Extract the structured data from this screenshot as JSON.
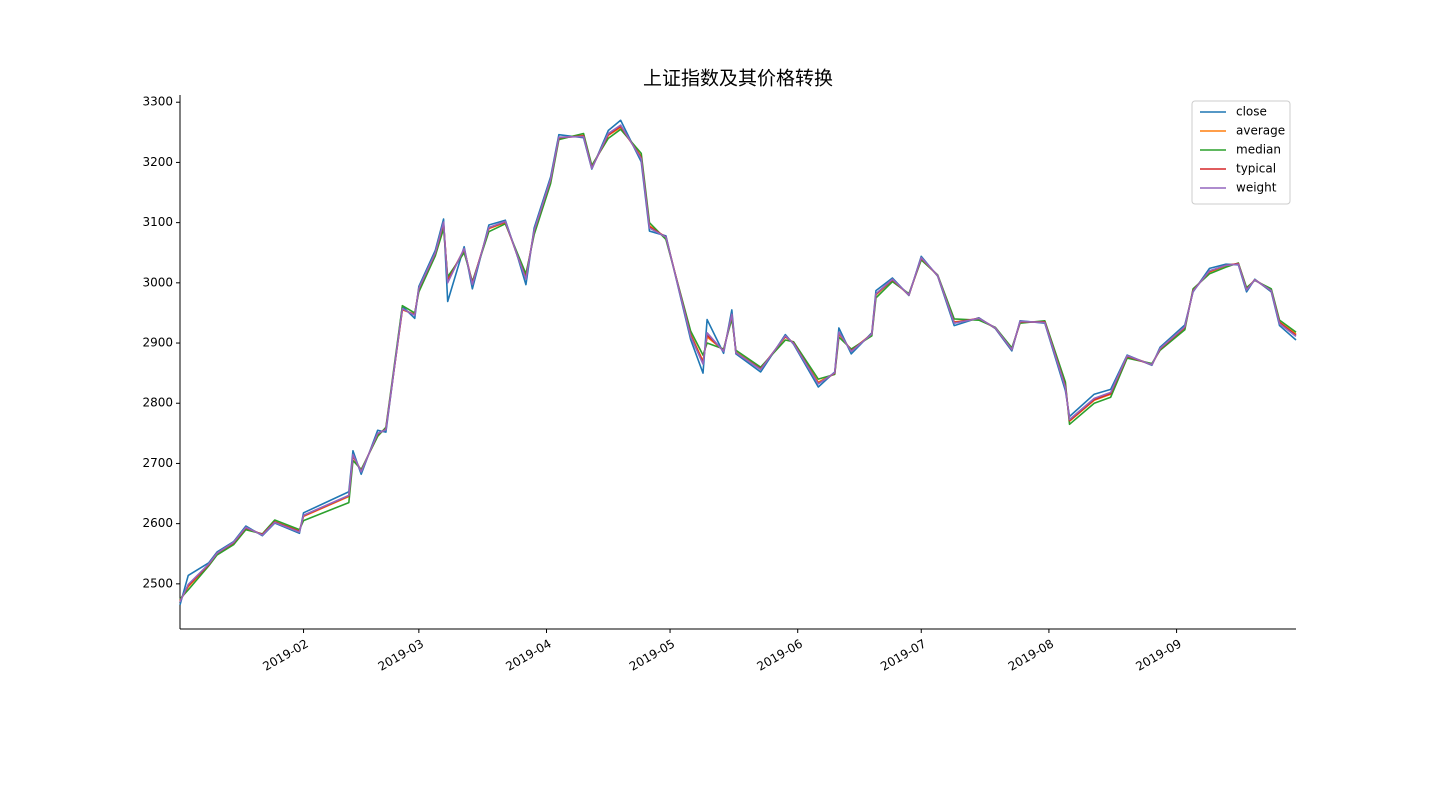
{
  "chart_data": {
    "type": "line",
    "title": "上证指数及其价格转换",
    "x": [
      "2019-01-02",
      "2019-01-04",
      "2019-01-09",
      "2019-01-11",
      "2019-01-15",
      "2019-01-18",
      "2019-01-22",
      "2019-01-25",
      "2019-01-31",
      "2019-02-01",
      "2019-02-12",
      "2019-02-13",
      "2019-02-15",
      "2019-02-19",
      "2019-02-21",
      "2019-02-25",
      "2019-02-28",
      "2019-03-01",
      "2019-03-05",
      "2019-03-07",
      "2019-03-08",
      "2019-03-12",
      "2019-03-14",
      "2019-03-18",
      "2019-03-22",
      "2019-03-25",
      "2019-03-27",
      "2019-03-29",
      "2019-04-02",
      "2019-04-04",
      "2019-04-10",
      "2019-04-12",
      "2019-04-16",
      "2019-04-19",
      "2019-04-24",
      "2019-04-26",
      "2019-04-30",
      "2019-05-06",
      "2019-05-09",
      "2019-05-10",
      "2019-05-14",
      "2019-05-16",
      "2019-05-17",
      "2019-05-23",
      "2019-05-29",
      "2019-05-31",
      "2019-06-06",
      "2019-06-10",
      "2019-06-11",
      "2019-06-14",
      "2019-06-19",
      "2019-06-20",
      "2019-06-24",
      "2019-06-28",
      "2019-07-01",
      "2019-07-05",
      "2019-07-09",
      "2019-07-15",
      "2019-07-19",
      "2019-07-23",
      "2019-07-25",
      "2019-07-31",
      "2019-08-05",
      "2019-08-06",
      "2019-08-12",
      "2019-08-16",
      "2019-08-20",
      "2019-08-26",
      "2019-08-28",
      "2019-09-03",
      "2019-09-05",
      "2019-09-09",
      "2019-09-13",
      "2019-09-16",
      "2019-09-18",
      "2019-09-20",
      "2019-09-24",
      "2019-09-26",
      "2019-09-30"
    ],
    "series": [
      {
        "name": "close",
        "color": "#1f77b4",
        "values": [
          2465,
          2514,
          2535,
          2553,
          2570,
          2596,
          2580,
          2601,
          2584,
          2618,
          2653,
          2721,
          2682,
          2755,
          2752,
          2961,
          2941,
          2994,
          3054,
          3106,
          2969,
          3060,
          2990,
          3096,
          3104,
          3043,
          2997,
          3091,
          3176,
          3246,
          3241,
          3189,
          3253,
          3270,
          3201,
          3086,
          3078,
          2906,
          2850,
          2939,
          2883,
          2955,
          2882,
          2852,
          2914,
          2898,
          2827,
          2852,
          2925,
          2882,
          2917,
          2987,
          3008,
          2979,
          3044,
          3011,
          2929,
          2942,
          2924,
          2887,
          2937,
          2933,
          2821,
          2778,
          2815,
          2823,
          2880,
          2863,
          2893,
          2930,
          2985,
          3024,
          3031,
          3030,
          2985,
          3006,
          2985,
          2929,
          2905
        ]
      },
      {
        "name": "average",
        "color": "#ff7f0e",
        "values": [
          2472,
          2495,
          2532,
          2550,
          2568,
          2592,
          2582,
          2603,
          2588,
          2612,
          2645,
          2712,
          2688,
          2748,
          2758,
          2955,
          2948,
          2990,
          3048,
          3098,
          3005,
          3055,
          3000,
          3090,
          3100,
          3045,
          3010,
          3085,
          3170,
          3240,
          3245,
          3192,
          3245,
          3258,
          3210,
          3095,
          3075,
          2915,
          2870,
          2910,
          2888,
          2945,
          2885,
          2858,
          2910,
          2900,
          2835,
          2850,
          2915,
          2888,
          2915,
          2980,
          3005,
          2980,
          3040,
          3012,
          2935,
          2940,
          2925,
          2890,
          2935,
          2935,
          2830,
          2770,
          2805,
          2815,
          2878,
          2865,
          2890,
          2925,
          2988,
          3018,
          3028,
          3032,
          2990,
          3005,
          2988,
          2935,
          2915
        ]
      },
      {
        "name": "median",
        "color": "#2ca02c",
        "values": [
          2475,
          2490,
          2530,
          2548,
          2565,
          2590,
          2583,
          2606,
          2590,
          2605,
          2635,
          2705,
          2690,
          2745,
          2760,
          2962,
          2950,
          2985,
          3045,
          3090,
          3010,
          3050,
          3002,
          3085,
          3098,
          3048,
          3015,
          3080,
          3165,
          3238,
          3248,
          3195,
          3240,
          3255,
          3215,
          3100,
          3072,
          2920,
          2880,
          2900,
          2890,
          2940,
          2888,
          2860,
          2905,
          2902,
          2840,
          2848,
          2910,
          2890,
          2912,
          2975,
          3002,
          2982,
          3038,
          3013,
          2940,
          2938,
          2926,
          2892,
          2933,
          2937,
          2835,
          2765,
          2800,
          2810,
          2875,
          2866,
          2888,
          2922,
          2990,
          3015,
          3026,
          3033,
          2992,
          3004,
          2990,
          2938,
          2918
        ]
      },
      {
        "name": "typical",
        "color": "#d62728",
        "values": [
          2471,
          2497,
          2532,
          2551,
          2568,
          2593,
          2582,
          2603,
          2587,
          2613,
          2646,
          2713,
          2687,
          2749,
          2757,
          2956,
          2947,
          2990,
          3049,
          3099,
          3003,
          3056,
          2999,
          3091,
          3101,
          3044,
          3008,
          3086,
          3171,
          3241,
          3244,
          3191,
          3246,
          3260,
          3208,
          3093,
          3076,
          2913,
          2868,
          2913,
          2887,
          2947,
          2884,
          2857,
          2911,
          2900,
          2833,
          2850,
          2917,
          2887,
          2915,
          2981,
          3005,
          2980,
          3041,
          3012,
          2934,
          2941,
          2925,
          2889,
          2935,
          2935,
          2828,
          2771,
          2806,
          2816,
          2878,
          2864,
          2890,
          2926,
          2987,
          3019,
          3029,
          3032,
          2989,
          3005,
          2987,
          2934,
          2913
        ]
      },
      {
        "name": "weight",
        "color": "#9467bd",
        "values": [
          2470,
          2499,
          2533,
          2551,
          2569,
          2594,
          2581,
          2602,
          2586,
          2614,
          2647,
          2715,
          2686,
          2750,
          2756,
          2957,
          2946,
          2991,
          3050,
          3101,
          3000,
          3057,
          2997,
          3092,
          3102,
          3044,
          3006,
          3087,
          3172,
          3242,
          3243,
          3190,
          3248,
          3262,
          3206,
          3091,
          3076,
          2911,
          2865,
          2917,
          2886,
          2948,
          2884,
          2856,
          2912,
          2899,
          2832,
          2851,
          2918,
          2886,
          2915,
          2982,
          3006,
          2980,
          3042,
          3012,
          2933,
          2941,
          2925,
          2889,
          2936,
          2934,
          2826,
          2773,
          2808,
          2818,
          2879,
          2864,
          2891,
          2927,
          2986,
          3020,
          3029,
          3031,
          2988,
          3005,
          2987,
          2932,
          2911
        ]
      }
    ],
    "xlim": [
      "2019-01-02",
      "2019-09-30"
    ],
    "xticks": [
      {
        "value": "2019-02-01",
        "label": "2019-02"
      },
      {
        "value": "2019-03-01",
        "label": "2019-03"
      },
      {
        "value": "2019-04-01",
        "label": "2019-04"
      },
      {
        "value": "2019-05-01",
        "label": "2019-05"
      },
      {
        "value": "2019-06-01",
        "label": "2019-06"
      },
      {
        "value": "2019-07-01",
        "label": "2019-07"
      },
      {
        "value": "2019-08-01",
        "label": "2019-08"
      },
      {
        "value": "2019-09-01",
        "label": "2019-09"
      }
    ],
    "ylim": [
      2425,
      3312
    ],
    "yticks": [
      2500,
      2600,
      2700,
      2800,
      2900,
      3000,
      3100,
      3200,
      3300
    ],
    "legend": "upper right"
  }
}
